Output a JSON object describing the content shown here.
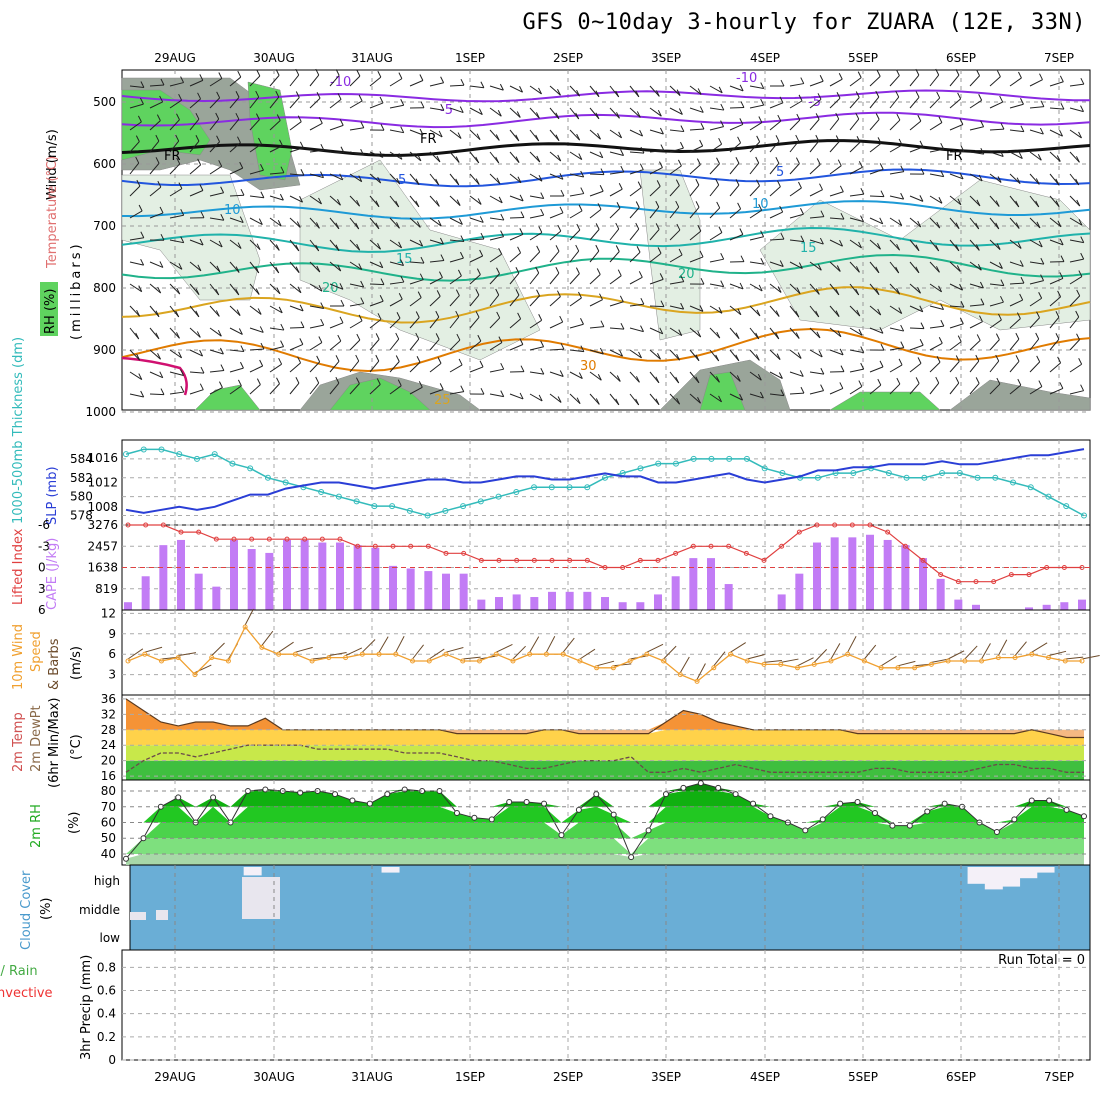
{
  "title": "GFS 0~10day 3-hourly for ZUARA (12E, 33N)",
  "dates": [
    "29AUG",
    "30AUG",
    "31AUG",
    "1SEP",
    "2SEP",
    "3SEP",
    "4SEP",
    "5SEP",
    "6SEP",
    "7SEP"
  ],
  "colors": {
    "rh_green": "#5fd35f",
    "rh_light": "#e3efe3",
    "rh_mid": "#9aa59a",
    "temp_minus10": "#8a2be2",
    "temp_5": "#2255dd",
    "temp_10": "#1e9ad6",
    "temp_15": "#20b2aa",
    "temp_20": "#20b28a",
    "temp_25": "#daa520",
    "temp_30": "#e07b00",
    "thickness": "#33bbbb",
    "slp": "#2a3ed6",
    "lifted": "#e04040",
    "cape": "#c27cf5",
    "wind": "#f0a030",
    "cloud": "#6aaed6",
    "rain": "#44aa44",
    "convective": "#ee3333"
  },
  "panels": {
    "profile": {
      "label_wind": "Wind (m/s)",
      "label_temp": "Temperature (°C)",
      "label_rh": "RH (%)",
      "label_mb": "(millibars)",
      "yticks": [
        "500",
        "600",
        "700",
        "800",
        "900",
        "1000"
      ],
      "contour_labels": [
        "-10",
        "-5",
        "FR",
        "5",
        "10",
        "15",
        "20",
        "25",
        "30",
        "-10",
        "-5",
        "FR",
        "5",
        "10",
        "15",
        "20",
        "30"
      ]
    },
    "pressure": {
      "label_thick": "1000-500mb Thickness (dm)",
      "label_slp": "SLP (mb)",
      "yticks_left": [
        "584",
        "582",
        "580",
        "578"
      ],
      "yticks_right": [
        "1016",
        "1012",
        "1008"
      ]
    },
    "cape": {
      "label_li": "Lifted Index",
      "label_cape": "CAPE (J/kg)",
      "yticks_left": [
        "-6",
        "-3",
        "0",
        "3",
        "6"
      ],
      "yticks_right": [
        "3276",
        "2457",
        "1638",
        "819"
      ]
    },
    "wind10": {
      "label_1": "10m Wind",
      "label_2": "Speed",
      "label_3": "& Barbs",
      "label_units": "(m/s)",
      "yticks": [
        "12",
        "9",
        "6",
        "3"
      ]
    },
    "temp2m": {
      "label_1": "2m Temp",
      "label_2": "2m DewPt",
      "label_3": "(6hr Min/Max)",
      "label_units": "(°C)",
      "yticks": [
        "36",
        "32",
        "28",
        "24",
        "20",
        "16"
      ]
    },
    "rh2m": {
      "label": "2m RH",
      "label_units": "(%)",
      "yticks": [
        "80",
        "70",
        "60",
        "50",
        "40"
      ]
    },
    "cloud": {
      "label": "Cloud Cover",
      "label_units": "(%)",
      "yticks": [
        "high",
        "middle",
        "low"
      ]
    },
    "precip": {
      "label_1": "Total / Rain",
      "label_2": "Convective",
      "label_3": "3hr Precip (mm)",
      "run_total": "Run Total = 0",
      "yticks": [
        "0.8",
        "0.6",
        "0.4",
        "0.2",
        "0"
      ]
    }
  },
  "chart_data": [
    {
      "type": "line",
      "title": "1000-500mb Thickness / SLP",
      "series": [
        {
          "name": "1000-500mb Thickness (dm)",
          "values": [
            584.5,
            585,
            585,
            584.5,
            584,
            584.5,
            583.5,
            583,
            582,
            581.5,
            581,
            580.5,
            580,
            579.5,
            579,
            579,
            578.5,
            578,
            578.5,
            579,
            579.5,
            580,
            580.5,
            581,
            581,
            581,
            581,
            582,
            582.5,
            583,
            583.5,
            583.5,
            584,
            584,
            584,
            584,
            583,
            582.5,
            582,
            582,
            582.5,
            582.5,
            583,
            582.5,
            582,
            582,
            582.5,
            582.5,
            582,
            582,
            581.5,
            581,
            580,
            579,
            578
          ]
        },
        {
          "name": "SLP (mb)",
          "values": [
            1007.5,
            1007,
            1007.5,
            1008,
            1007.5,
            1008,
            1009,
            1010,
            1010,
            1011,
            1011.5,
            1012,
            1012,
            1011.5,
            1011,
            1011.5,
            1012,
            1012.5,
            1012.5,
            1012,
            1012,
            1012.5,
            1013,
            1013,
            1012.5,
            1012.5,
            1013,
            1013.5,
            1013,
            1013,
            1012,
            1012,
            1012.5,
            1013,
            1013.5,
            1012.5,
            1012,
            1012.5,
            1013,
            1014,
            1014,
            1014.5,
            1014.5,
            1015,
            1015,
            1015,
            1015.5,
            1015,
            1015,
            1015.5,
            1016,
            1016.5,
            1016.5,
            1017,
            1017.5
          ]
        }
      ]
    },
    {
      "type": "bar",
      "title": "CAPE (J/kg) / Lifted Index",
      "series": [
        {
          "name": "CAPE (J/kg)",
          "values": [
            300,
            1300,
            2500,
            2700,
            1400,
            900,
            2700,
            2350,
            2200,
            2700,
            2700,
            2600,
            2600,
            2500,
            2400,
            1700,
            1600,
            1500,
            1400,
            1400,
            400,
            500,
            600,
            500,
            700,
            700,
            700,
            500,
            300,
            300,
            600,
            1300,
            2000,
            2000,
            1000,
            0,
            0,
            600,
            1400,
            2600,
            2800,
            2800,
            2900,
            2700,
            2500,
            2000,
            1200,
            400,
            200,
            0,
            0,
            100,
            200,
            300,
            400
          ]
        },
        {
          "name": "Lifted Index",
          "values": [
            -6,
            -6,
            -6,
            -5,
            -5,
            -4,
            -4,
            -4,
            -4,
            -4,
            -4,
            -4,
            -4,
            -3,
            -3,
            -3,
            -3,
            -3,
            -2,
            -2,
            -1,
            -1,
            -1,
            -1,
            -1,
            -1,
            -1,
            0,
            0,
            -1,
            -1,
            -2,
            -3,
            -3,
            -3,
            -2,
            -1,
            -3,
            -5,
            -6,
            -6,
            -6,
            -6,
            -5,
            -3,
            -1,
            1,
            2,
            2,
            2,
            1,
            1,
            0,
            0,
            0
          ]
        }
      ]
    },
    {
      "type": "line",
      "title": "10m Wind Speed (m/s)",
      "series": [
        {
          "name": "10m Wind Speed",
          "values": [
            5,
            6,
            5,
            5.5,
            3,
            5.5,
            5,
            10,
            7,
            6,
            6,
            5,
            5.5,
            5.5,
            6,
            6,
            6,
            5,
            5,
            6,
            5,
            5,
            6,
            5,
            6,
            6,
            6,
            5,
            4,
            4,
            5,
            6,
            5,
            3,
            2,
            4,
            6,
            5,
            4.5,
            4.5,
            4,
            4.5,
            5,
            6,
            5,
            4,
            4,
            4,
            4.5,
            5,
            5,
            5,
            5.5,
            5.5,
            6,
            5.5,
            5,
            5
          ]
        }
      ]
    },
    {
      "type": "area",
      "title": "2m Temp / DewPt (°C)",
      "series": [
        {
          "name": "2m Temp",
          "values": [
            36,
            33,
            30,
            29,
            30,
            30,
            29,
            29,
            31,
            28,
            28,
            28,
            28,
            28,
            28,
            28,
            28,
            28,
            28,
            27,
            27,
            27,
            27,
            27,
            28,
            28,
            27,
            27,
            27,
            27,
            27,
            30,
            33,
            32,
            30,
            29,
            28,
            28,
            28,
            28,
            28,
            28,
            27,
            27,
            27,
            27,
            27,
            27,
            27,
            27,
            27,
            27,
            28,
            27,
            26,
            26
          ]
        },
        {
          "name": "2m DewPt",
          "values": [
            17,
            20,
            22,
            22,
            21,
            22,
            23,
            24,
            24,
            24,
            24,
            23,
            23,
            23,
            23,
            23,
            22,
            22,
            22,
            21,
            20,
            20,
            19,
            18,
            18,
            19,
            20,
            20,
            20,
            21,
            17,
            17,
            18,
            17,
            18,
            19,
            18,
            17,
            17,
            17,
            17,
            17,
            17,
            18,
            18,
            17,
            17,
            17,
            17,
            18,
            19,
            19,
            18,
            18,
            17,
            17
          ]
        }
      ]
    },
    {
      "type": "area",
      "title": "2m RH (%)",
      "series": [
        {
          "name": "2m RH",
          "values": [
            37,
            50,
            70,
            76,
            60,
            76,
            60,
            80,
            81,
            80,
            79,
            80,
            78,
            74,
            72,
            78,
            81,
            80,
            80,
            66,
            63,
            62,
            73,
            73,
            72,
            52,
            68,
            78,
            65,
            38,
            55,
            78,
            82,
            85,
            82,
            78,
            72,
            64,
            60,
            55,
            62,
            72,
            73,
            66,
            58,
            58,
            67,
            72,
            70,
            60,
            54,
            62,
            74,
            74,
            68,
            64
          ]
        }
      ]
    },
    {
      "type": "heatmap",
      "title": "Cloud Cover (%)",
      "series": [
        {
          "name": "high",
          "values": [
            0,
            0,
            0,
            0,
            0,
            0,
            0,
            30,
            0,
            0,
            0,
            0,
            0,
            0,
            0,
            20,
            0,
            0,
            0,
            0,
            0,
            0,
            0,
            0,
            0,
            0,
            0,
            0,
            0,
            0,
            0,
            0,
            0,
            0,
            0,
            0,
            0,
            0,
            0,
            0,
            0,
            0,
            0,
            0,
            0,
            0,
            0,
            0,
            0,
            60,
            80,
            70,
            40,
            20,
            0,
            0
          ]
        }
      ]
    },
    {
      "type": "bar",
      "title": "3hr Precip (mm)",
      "series": [
        {
          "name": "Total / Rain",
          "values": [
            0,
            0,
            0,
            0,
            0,
            0,
            0,
            0,
            0,
            0,
            0,
            0,
            0,
            0,
            0,
            0,
            0,
            0,
            0,
            0,
            0,
            0,
            0,
            0,
            0,
            0,
            0,
            0,
            0,
            0,
            0,
            0,
            0,
            0,
            0,
            0,
            0,
            0,
            0,
            0,
            0,
            0,
            0,
            0,
            0,
            0,
            0,
            0,
            0,
            0,
            0,
            0,
            0,
            0,
            0
          ]
        }
      ]
    }
  ]
}
